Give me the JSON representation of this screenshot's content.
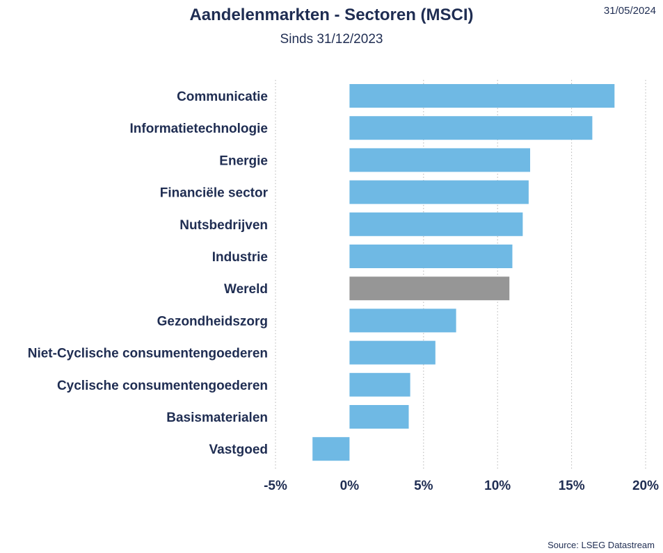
{
  "header": {
    "title": "Aandelenmarkten - Sectoren (MSCI)",
    "subtitle": "Sinds 31/12/2023",
    "date": "31/05/2024"
  },
  "footer": {
    "source": "Source: LSEG Datastream"
  },
  "colors": {
    "bar": "#6fb9e4",
    "highlight": "#969696",
    "text": "#1f2d52",
    "grid": "#b5b5b5"
  },
  "chart_data": {
    "type": "bar",
    "orientation": "horizontal",
    "title": "Aandelenmarkten - Sectoren (MSCI)",
    "subtitle": "Sinds 31/12/2023",
    "categories": [
      "Communicatie",
      "Informatietechnologie",
      "Energie",
      "Financiële sector",
      "Nutsbedrijven",
      "Industrie",
      "Wereld",
      "Gezondheidszorg",
      "Niet-Cyclische consumentengoederen",
      "Cyclische consumentengoederen",
      "Basismaterialen",
      "Vastgoed"
    ],
    "values": [
      17.9,
      16.4,
      12.2,
      12.1,
      11.7,
      11.0,
      10.8,
      7.2,
      5.8,
      4.1,
      4.0,
      -2.5
    ],
    "highlight_category": "Wereld",
    "xlim": [
      -5,
      20
    ],
    "xticks": [
      -5,
      0,
      5,
      10,
      15,
      20
    ],
    "xtick_labels": [
      "-5%",
      "0%",
      "5%",
      "10%",
      "15%",
      "20%"
    ],
    "xlabel": "",
    "ylabel": "",
    "grid": "vertical dotted",
    "legend": "none"
  }
}
